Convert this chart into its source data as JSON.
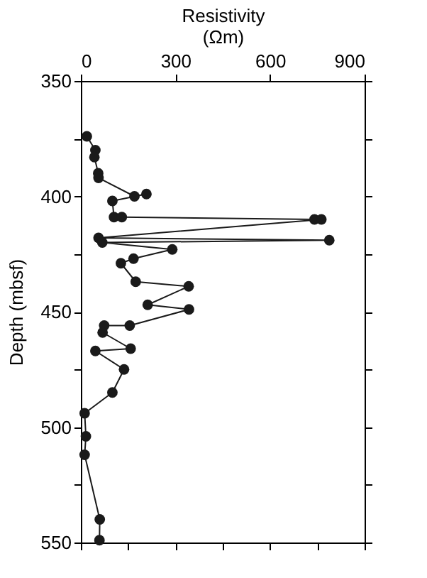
{
  "chart_data": {
    "type": "line",
    "xlabel": "Resistivity\n(Ωm)",
    "ylabel": "Depth (mbsf)",
    "x": [
      19,
      46,
      43,
      55,
      56,
      170,
      208,
      100,
      105,
      130,
      741,
      763,
      56,
      788,
      68,
      290,
      167,
      127,
      174,
      342,
      212,
      343,
      155,
      74,
      69,
      158,
      46,
      137,
      100,
      12,
      16,
      12,
      60,
      59
    ],
    "series": [
      {
        "color": "#1a1a1a",
        "values": [
          374,
          380,
          383,
          390,
          392,
          400,
          399,
          402,
          409,
          409,
          410,
          410,
          418,
          419,
          420,
          423,
          427,
          429,
          437,
          439,
          447,
          449,
          456,
          456,
          459,
          466,
          467,
          475,
          485,
          494,
          504,
          512,
          540,
          549
        ]
      }
    ],
    "marker": "circle",
    "line_style": "solid",
    "grid": false,
    "xlim": [
      0,
      900
    ],
    "xticks": [
      0,
      {
        "value": 150,
        "label": null
      },
      300,
      {
        "value": 450,
        "label": null
      },
      600,
      {
        "value": 750,
        "label": null
      },
      900
    ],
    "ylim": [
      550,
      350
    ],
    "yticks": [
      350,
      {
        "value": 375,
        "label": null
      },
      400,
      {
        "value": 425,
        "label": null
      },
      450,
      {
        "value": 475,
        "label": null
      },
      500,
      {
        "value": 525,
        "label": null
      },
      550
    ]
  }
}
